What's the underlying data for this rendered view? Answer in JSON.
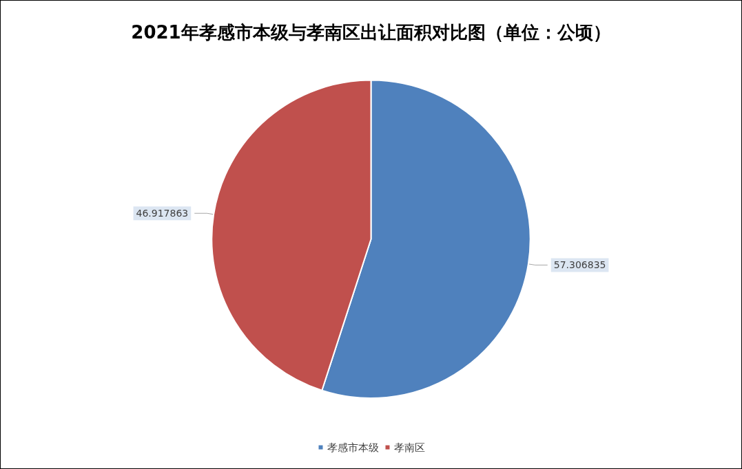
{
  "chart_data": {
    "type": "pie",
    "title": "2021年孝感市本级与孝南区出让面积对比图（单位：公顷）",
    "categories": [
      "孝感市本级",
      "孝南区"
    ],
    "values": [
      57.306835,
      46.917863
    ],
    "colors": [
      "#4f81bd",
      "#c0504d"
    ],
    "data_labels": true,
    "legend": "bottom"
  }
}
